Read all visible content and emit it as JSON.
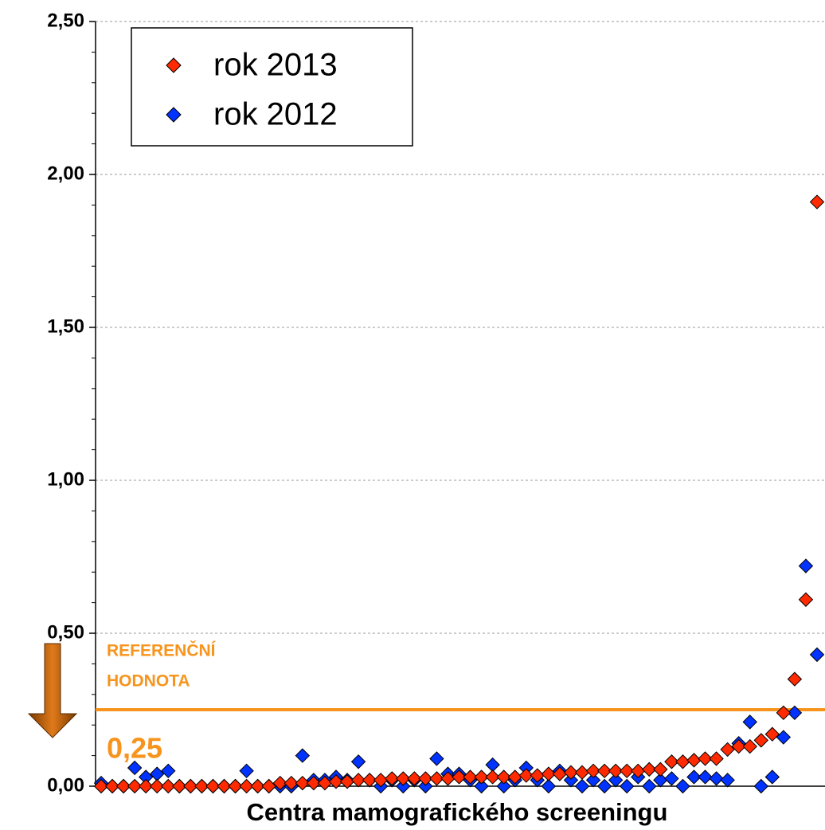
{
  "chart_data": {
    "type": "scatter",
    "x_label": "Centra mamografického screeningu",
    "categories": [
      null,
      null,
      null,
      null,
      null,
      null,
      null,
      null,
      null,
      null,
      null,
      null,
      null,
      null,
      null,
      null,
      null,
      null,
      null,
      null,
      null,
      null,
      null,
      null,
      null,
      null,
      null,
      null,
      null,
      null,
      null,
      null,
      null,
      null,
      null,
      null,
      null,
      null,
      null,
      null,
      null,
      null,
      null,
      null,
      null,
      null,
      null,
      null,
      null,
      null,
      null,
      null,
      null,
      null,
      null,
      null,
      null,
      null,
      null,
      null,
      null,
      null,
      null,
      null,
      null
    ],
    "series": [
      {
        "name": "rok 2013",
        "color": "#ff2a00",
        "values": [
          0,
          0,
          0,
          0,
          0,
          0,
          0,
          0,
          0,
          0,
          0,
          0,
          0,
          0,
          0,
          0,
          0.01,
          0.01,
          0.01,
          0.01,
          0.01,
          0.015,
          0.015,
          0.02,
          0.02,
          0.02,
          0.025,
          0.025,
          0.025,
          0.025,
          0.025,
          0.025,
          0.03,
          0.03,
          0.03,
          0.03,
          0.03,
          0.03,
          0.035,
          0.035,
          0.04,
          0.04,
          0.045,
          0.045,
          0.05,
          0.05,
          0.05,
          0.05,
          0.05,
          0.055,
          0.055,
          0.08,
          0.08,
          0.085,
          0.09,
          0.09,
          0.12,
          0.13,
          0.13,
          0.15,
          0.17,
          0.24,
          0.35,
          0.61,
          1.91
        ]
      },
      {
        "name": "rok 2012",
        "color": "#0033ff",
        "values": [
          0.01,
          0,
          0,
          0.06,
          0.03,
          0.04,
          0.05,
          0,
          0,
          0,
          0,
          0,
          0,
          0.05,
          0,
          0,
          0,
          0,
          0.1,
          0.02,
          0.02,
          0.03,
          0.02,
          0.08,
          0.02,
          0,
          0.02,
          0,
          0.02,
          0,
          0.09,
          0.04,
          0.04,
          0.02,
          0,
          0.07,
          0,
          0.02,
          0.06,
          0.02,
          0,
          0.05,
          0.02,
          0,
          0.02,
          0,
          0.02,
          0,
          0.03,
          0,
          0.02,
          0.025,
          0,
          0.03,
          0.03,
          0.025,
          0.02,
          0.14,
          0.21,
          0,
          0.03,
          0.16,
          0.24,
          0.72,
          0.43
        ]
      }
    ],
    "ylim": [
      0,
      2.5
    ],
    "yticks": [
      {
        "value": 0,
        "label": "0,00"
      },
      {
        "value": 0.5,
        "label": "0,50"
      },
      {
        "value": 1,
        "label": "1,00"
      },
      {
        "value": 1.5,
        "label": "1,50"
      },
      {
        "value": 2,
        "label": "2,00"
      },
      {
        "value": 2.5,
        "label": "2,50"
      }
    ],
    "y_minor_ticks": [
      0.1,
      0.2,
      0.3,
      0.4,
      0.6,
      0.7,
      0.8,
      0.9,
      1.1,
      1.2,
      1.3,
      1.4,
      1.6,
      1.7,
      1.8,
      1.9,
      2.1,
      2.2,
      2.3,
      2.4
    ],
    "grid": true,
    "legend": "top-left",
    "reference_line": {
      "value": 0.25,
      "label": "0,25",
      "text": [
        "REFERENČNÍ",
        "HODNOTA"
      ],
      "color": "#f7941d"
    }
  }
}
